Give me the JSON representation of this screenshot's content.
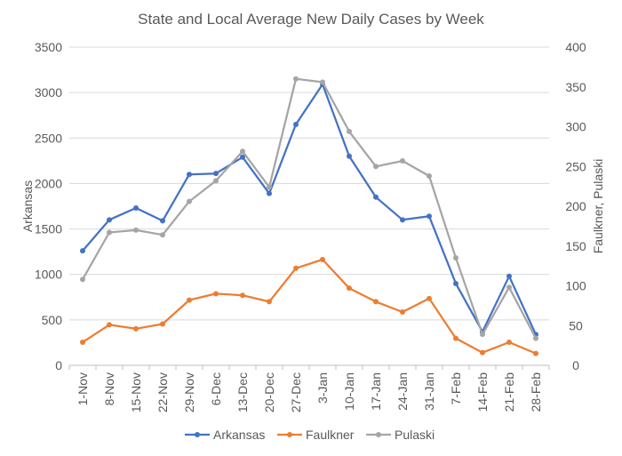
{
  "chart_data": {
    "type": "line",
    "title": "State and Local Average New Daily Cases by Week",
    "categories": [
      "1-Nov",
      "8-Nov",
      "15-Nov",
      "22-Nov",
      "29-Nov",
      "6-Dec",
      "13-Dec",
      "20-Dec",
      "27-Dec",
      "3-Jan",
      "10-Jan",
      "17-Jan",
      "24-Jan",
      "31-Jan",
      "7-Feb",
      "14-Feb",
      "21-Feb",
      "28-Feb"
    ],
    "y_left": {
      "label": "Arkansas",
      "min": 0,
      "max": 3500,
      "ticks": [
        0,
        500,
        1000,
        1500,
        2000,
        2500,
        3000,
        3500
      ]
    },
    "y_right": {
      "label": "Faulkner, Pulaski",
      "min": 0,
      "max": 400,
      "ticks": [
        0,
        50,
        100,
        150,
        200,
        250,
        300,
        350,
        400
      ]
    },
    "grid": true,
    "legend_position": "bottom",
    "series": [
      {
        "name": "Arkansas",
        "axis": "left",
        "color": "#4472C4",
        "values": [
          1260,
          1600,
          1730,
          1590,
          2100,
          2110,
          2290,
          1890,
          2650,
          3090,
          2300,
          1850,
          1600,
          1640,
          900,
          370,
          980,
          340
        ]
      },
      {
        "name": "Faulkner",
        "axis": "right",
        "color": "#ED7D31",
        "values": [
          29,
          51,
          46,
          52,
          82,
          90,
          88,
          80,
          122,
          133,
          97,
          80,
          67,
          84,
          34,
          16,
          29,
          15
        ]
      },
      {
        "name": "Pulaski",
        "axis": "right",
        "color": "#A5A5A5",
        "values": [
          108,
          167,
          170,
          164,
          206,
          232,
          269,
          224,
          360,
          356,
          294,
          250,
          257,
          238,
          135,
          39,
          98,
          34
        ]
      }
    ]
  }
}
